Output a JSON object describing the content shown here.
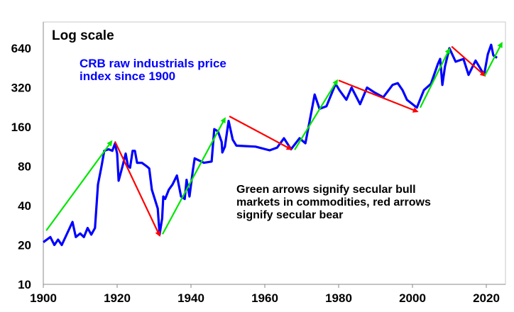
{
  "chart_data": {
    "type": "line",
    "title": "Log scale",
    "subtitle": "CRB raw industrials price index since 1900",
    "annotation": "Green arrows signify secular bull markets in commodities, red arrows signify secular bear",
    "xlabel": "",
    "ylabel": "",
    "y_scale": "log2",
    "xlim": [
      1900,
      2025
    ],
    "ylim": [
      10,
      1000
    ],
    "x_ticks": [
      "1900",
      "1920",
      "1940",
      "1960",
      "1980",
      "2000",
      "2020"
    ],
    "y_ticks": [
      "10",
      "20",
      "40",
      "80",
      "160",
      "320",
      "640"
    ],
    "grid": false,
    "colors": {
      "series": "#0000ff",
      "bull": "#00e600",
      "bear": "#ff0000"
    },
    "series": [
      {
        "name": "CRB raw industrials price index",
        "points": [
          [
            1900,
            21
          ],
          [
            1901.9,
            23
          ],
          [
            1903,
            20
          ],
          [
            1904,
            22
          ],
          [
            1905,
            20
          ],
          [
            1907.9,
            30
          ],
          [
            1908.8,
            23
          ],
          [
            1910,
            24.5
          ],
          [
            1911,
            23
          ],
          [
            1912,
            27
          ],
          [
            1913,
            24
          ],
          [
            1914,
            27
          ],
          [
            1914.8,
            58
          ],
          [
            1915.8,
            81
          ],
          [
            1916.5,
            105
          ],
          [
            1917.7,
            108
          ],
          [
            1918.7,
            105
          ],
          [
            1919.4,
            119
          ],
          [
            1920,
            100
          ],
          [
            1920.4,
            62
          ],
          [
            1921.5,
            81
          ],
          [
            1922.3,
            100
          ],
          [
            1922.9,
            81
          ],
          [
            1923.5,
            78
          ],
          [
            1924.2,
            105
          ],
          [
            1924.8,
            105
          ],
          [
            1925.4,
            85
          ],
          [
            1926.7,
            85
          ],
          [
            1928,
            80
          ],
          [
            1928.7,
            77
          ],
          [
            1929.4,
            53
          ],
          [
            1931,
            38
          ],
          [
            1931.5,
            24
          ],
          [
            1932.2,
            32
          ],
          [
            1932.5,
            47
          ],
          [
            1933,
            45
          ],
          [
            1934,
            53
          ],
          [
            1935,
            58
          ],
          [
            1936.2,
            68
          ],
          [
            1937.3,
            47
          ],
          [
            1938.3,
            45
          ],
          [
            1938.8,
            63
          ],
          [
            1939.6,
            47
          ],
          [
            1940.5,
            74
          ],
          [
            1941,
            92
          ],
          [
            1943.5,
            85
          ],
          [
            1945.6,
            87
          ],
          [
            1946.3,
            154
          ],
          [
            1947.3,
            148
          ],
          [
            1948.3,
            123
          ],
          [
            1948.5,
            102
          ],
          [
            1949.2,
            113
          ],
          [
            1950.2,
            178
          ],
          [
            1951.3,
            128
          ],
          [
            1952.3,
            115
          ],
          [
            1957.5,
            113
          ],
          [
            1961.3,
            106
          ],
          [
            1963.3,
            111
          ],
          [
            1965.2,
            131
          ],
          [
            1967.1,
            108
          ],
          [
            1969.4,
            131
          ],
          [
            1971,
            120
          ],
          [
            1972.9,
            230
          ],
          [
            1973.5,
            283
          ],
          [
            1974.8,
            220
          ],
          [
            1976.7,
            230
          ],
          [
            1978,
            283
          ],
          [
            1979.2,
            342
          ],
          [
            1980.2,
            306
          ],
          [
            1982.1,
            258
          ],
          [
            1983.5,
            320
          ],
          [
            1985.8,
            239
          ],
          [
            1987.7,
            320
          ],
          [
            1989.6,
            295
          ],
          [
            1992.1,
            270
          ],
          [
            1994.6,
            335
          ],
          [
            1996,
            346
          ],
          [
            1997.3,
            306
          ],
          [
            1998.5,
            258
          ],
          [
            2001.2,
            225
          ],
          [
            2003.1,
            306
          ],
          [
            2005,
            342
          ],
          [
            2006.9,
            487
          ],
          [
            2007.5,
            530
          ],
          [
            2008.1,
            335
          ],
          [
            2008.8,
            465
          ],
          [
            2010,
            640
          ],
          [
            2011.7,
            505
          ],
          [
            2013.8,
            530
          ],
          [
            2015.2,
            400
          ],
          [
            2017.1,
            515
          ],
          [
            2019.4,
            400
          ],
          [
            2020.4,
            575
          ],
          [
            2021.3,
            680
          ],
          [
            2021.9,
            565
          ],
          [
            2022.9,
            540
          ]
        ]
      }
    ],
    "arrows": [
      {
        "type": "bull",
        "from": [
          1900.8,
          25.8
        ],
        "to": [
          1918.5,
          124
        ]
      },
      {
        "type": "bear",
        "from": [
          1919.4,
          124
        ],
        "to": [
          1931.5,
          23.6
        ]
      },
      {
        "type": "bull",
        "from": [
          1932.3,
          24.2
        ],
        "to": [
          1949.2,
          186
        ]
      },
      {
        "type": "bear",
        "from": [
          1950.4,
          193
        ],
        "to": [
          1967.1,
          108
        ]
      },
      {
        "type": "bull",
        "from": [
          1968.1,
          107
        ],
        "to": [
          1979.6,
          363
        ]
      },
      {
        "type": "bear",
        "from": [
          1980,
          363
        ],
        "to": [
          2001.3,
          210
        ]
      },
      {
        "type": "bull",
        "from": [
          2002.1,
          225
        ],
        "to": [
          2010,
          630
        ]
      },
      {
        "type": "bear",
        "from": [
          2010.6,
          660
        ],
        "to": [
          2019.6,
          395
        ]
      },
      {
        "type": "bull",
        "from": [
          2019.6,
          395
        ],
        "to": [
          2024.2,
          700
        ]
      }
    ]
  }
}
